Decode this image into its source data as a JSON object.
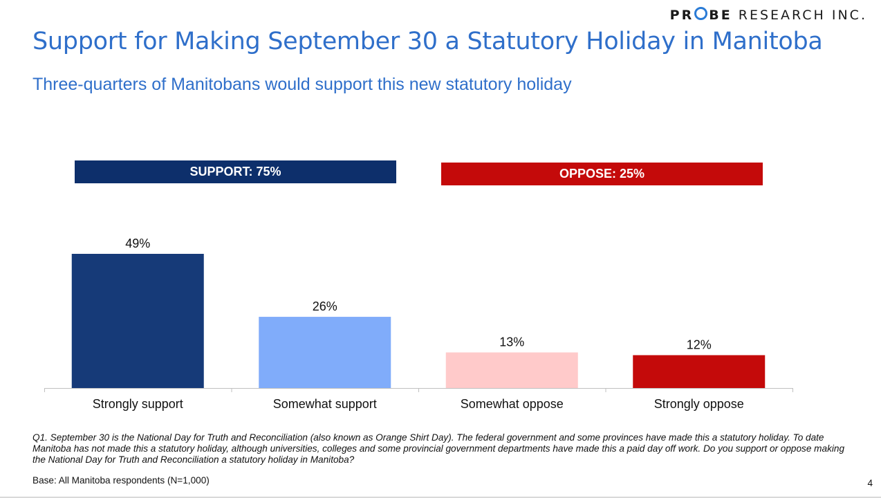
{
  "logo": {
    "bold_part": "PR",
    "bold_part_2": "BE",
    "light_part": "RESEARCH INC."
  },
  "header": {
    "title": "Support for Making September 30 a Statutory Holiday in Manitoba",
    "subtitle": "Three-quarters of Manitobans would support this new statutory holiday"
  },
  "banners": {
    "support": "SUPPORT: 75%",
    "oppose": "OPPOSE: 25%"
  },
  "chart_data": {
    "type": "bar",
    "categories": [
      "Strongly support",
      "Somewhat support",
      "Somewhat oppose",
      "Strongly oppose"
    ],
    "values": [
      49,
      26,
      13,
      12
    ],
    "data_labels": [
      "49%",
      "26%",
      "13%",
      "12%"
    ],
    "colors": [
      "#163a78",
      "#80acfa",
      "#ffcaca",
      "#c40a0a"
    ],
    "title": "",
    "xlabel": "",
    "ylabel": "",
    "ylim": [
      0,
      60
    ],
    "grid": false
  },
  "footnote": "Q1. September 30 is the National Day for Truth and Reconciliation (also known as Orange Shirt Day). The federal government and some provinces have made this a statutory holiday. To date Manitoba has not made this a statutory holiday, although universities, colleges and some provincial government departments have made this a paid day off work. Do you support or oppose making the National Day for Truth and Reconciliation a statutory holiday in Manitoba?",
  "base_note": "Base: All Manitoba respondents (N=1,000)",
  "page_number": "4"
}
